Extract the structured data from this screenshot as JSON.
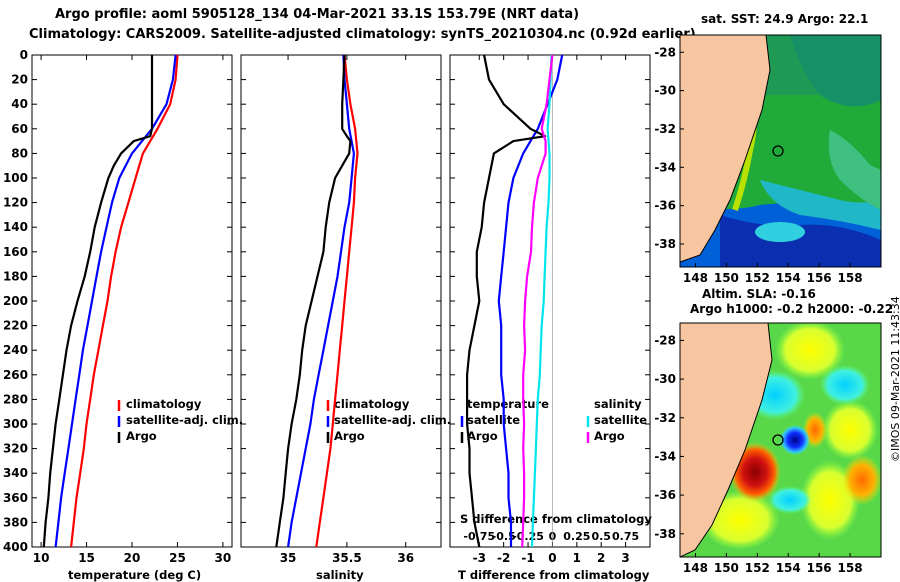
{
  "header": {
    "title_line1": "Argo profile: aoml 5905128_134 04-Mar-2021 33.1S 153.79E (NRT data)",
    "title_line2": "Climatology: CARS2009. Satellite-adjusted climatology: synTS_20210304.nc (0.92d earlier)"
  },
  "credit": "©IMOS 09-Mar-2021 11:43:34",
  "colors": {
    "climatology": "#ff0000",
    "satellite": "#0000ff",
    "argo": "#000000",
    "sat_salinity": "#00e5ee",
    "argo_salinity": "#ff00ff",
    "land": "#f7c59f"
  },
  "depth_ticks": [
    "0",
    "20",
    "40",
    "60",
    "80",
    "100",
    "120",
    "140",
    "160",
    "180",
    "200",
    "220",
    "240",
    "260",
    "280",
    "300",
    "320",
    "340",
    "360",
    "380",
    "400"
  ],
  "chart_data": [
    {
      "type": "line",
      "id": "temperature",
      "xlabel": "temperature (deg C)",
      "ylabel": "",
      "xlim": [
        9,
        31
      ],
      "ylim": [
        0,
        400
      ],
      "x_ticks": [
        "10",
        "15",
        "20",
        "25",
        "30"
      ],
      "legend": [
        "climatology",
        "satellite-adj. clim.",
        "Argo"
      ],
      "legend_position": "lower-right",
      "series": [
        {
          "name": "climatology",
          "color": "#ff0000",
          "depth": [
            0,
            20,
            40,
            60,
            80,
            100,
            120,
            140,
            160,
            180,
            200,
            220,
            240,
            260,
            280,
            300,
            320,
            340,
            360,
            380,
            400
          ],
          "values": [
            25.0,
            24.8,
            24.2,
            22.8,
            21.2,
            20.4,
            19.6,
            18.8,
            18.2,
            17.7,
            17.3,
            16.8,
            16.3,
            15.8,
            15.4,
            15.0,
            14.7,
            14.3,
            13.9,
            13.6,
            13.3
          ]
        },
        {
          "name": "satellite-adj. clim.",
          "color": "#0000ff",
          "depth": [
            0,
            20,
            40,
            60,
            80,
            100,
            120,
            140,
            160,
            180,
            200,
            220,
            240,
            260,
            280,
            300,
            320,
            340,
            360,
            380,
            400
          ],
          "values": [
            24.8,
            24.5,
            23.8,
            22.2,
            20.0,
            18.6,
            17.8,
            17.2,
            16.6,
            16.1,
            15.6,
            15.1,
            14.6,
            14.2,
            13.8,
            13.4,
            13.0,
            12.6,
            12.2,
            11.9,
            11.6
          ]
        },
        {
          "name": "Argo",
          "color": "#000000",
          "depth": [
            0,
            20,
            40,
            50,
            60,
            66,
            70,
            80,
            90,
            100,
            120,
            140,
            160,
            180,
            200,
            220,
            240,
            260,
            280,
            300,
            320,
            340,
            360,
            380,
            400
          ],
          "values": [
            22.2,
            22.2,
            22.2,
            22.2,
            22.2,
            22.0,
            20.2,
            18.8,
            18.0,
            17.4,
            16.6,
            15.9,
            15.4,
            14.8,
            14.0,
            13.3,
            12.8,
            12.4,
            12.0,
            11.6,
            11.3,
            11.0,
            10.8,
            10.5,
            10.3
          ]
        }
      ]
    },
    {
      "type": "line",
      "id": "salinity",
      "xlabel": "salinity",
      "ylabel": "",
      "xlim": [
        34.6,
        36.3
      ],
      "ylim": [
        0,
        400
      ],
      "x_ticks": [
        "35",
        "35.5",
        "36"
      ],
      "legend": [
        "climatology",
        "satellite-adj. clim.",
        "Argo"
      ],
      "legend_position": "lower-right",
      "series": [
        {
          "name": "climatology",
          "color": "#ff0000",
          "depth": [
            0,
            20,
            40,
            60,
            80,
            100,
            120,
            140,
            160,
            180,
            200,
            220,
            240,
            260,
            280,
            300,
            320,
            340,
            360,
            380,
            400
          ],
          "values": [
            35.48,
            35.5,
            35.53,
            35.57,
            35.59,
            35.57,
            35.56,
            35.54,
            35.52,
            35.5,
            35.48,
            35.46,
            35.44,
            35.42,
            35.4,
            35.38,
            35.36,
            35.33,
            35.3,
            35.27,
            35.24
          ]
        },
        {
          "name": "satellite-adj. clim.",
          "color": "#0000ff",
          "depth": [
            0,
            20,
            40,
            60,
            80,
            100,
            120,
            140,
            160,
            180,
            200,
            220,
            240,
            260,
            280,
            300,
            320,
            340,
            360,
            380,
            400
          ],
          "values": [
            35.47,
            35.48,
            35.5,
            35.52,
            35.56,
            35.54,
            35.52,
            35.48,
            35.45,
            35.42,
            35.38,
            35.34,
            35.3,
            35.26,
            35.22,
            35.19,
            35.15,
            35.11,
            35.07,
            35.03,
            35.0
          ]
        },
        {
          "name": "Argo",
          "color": "#000000",
          "depth": [
            0,
            20,
            40,
            60,
            66,
            70,
            80,
            100,
            120,
            140,
            160,
            180,
            200,
            220,
            240,
            260,
            280,
            300,
            320,
            340,
            360,
            380,
            400
          ],
          "values": [
            35.48,
            35.47,
            35.46,
            35.46,
            35.5,
            35.53,
            35.52,
            35.4,
            35.35,
            35.32,
            35.3,
            35.25,
            35.2,
            35.15,
            35.12,
            35.1,
            35.07,
            35.03,
            35.0,
            34.98,
            34.96,
            34.93,
            34.9
          ]
        }
      ]
    },
    {
      "type": "line",
      "id": "difference",
      "xlabel": "T difference from climatology",
      "secondary_xlabel": "S difference from climatology",
      "xlim": [
        -4.2,
        4.0
      ],
      "ylim": [
        0,
        400
      ],
      "x_ticks": [
        "-3",
        "-2",
        "-1",
        "0",
        "1",
        "2",
        "3"
      ],
      "secondary_x_ticks": [
        "-0.75",
        "-0.5",
        "-0.25",
        "0",
        "0.25",
        "0.5",
        "0.75"
      ],
      "legend_temperature_title": "temperature",
      "legend_salinity_title": "salinity",
      "legend_temperature": [
        "satellite",
        "Argo"
      ],
      "legend_salinity": [
        "satellite",
        "Argo"
      ],
      "series": [
        {
          "name": "temperature satellite",
          "color": "#0000ff",
          "depth": [
            0,
            20,
            40,
            60,
            80,
            100,
            120,
            140,
            160,
            180,
            200,
            220,
            240,
            260,
            280,
            300,
            320,
            340,
            360,
            380,
            400
          ],
          "values": [
            0.4,
            0.2,
            -0.2,
            -0.6,
            -1.2,
            -1.6,
            -1.8,
            -1.9,
            -2.0,
            -2.1,
            -2.2,
            -2.1,
            -2.1,
            -2.1,
            -2.0,
            -2.0,
            -1.9,
            -1.8,
            -1.8,
            -1.7,
            -1.7
          ]
        },
        {
          "name": "temperature Argo",
          "color": "#000000",
          "depth": [
            0,
            20,
            40,
            60,
            66,
            70,
            80,
            100,
            120,
            140,
            160,
            180,
            200,
            220,
            240,
            260,
            280,
            300,
            320,
            340,
            360,
            380,
            400
          ],
          "values": [
            -2.8,
            -2.6,
            -2.0,
            -0.9,
            -0.3,
            -1.6,
            -2.4,
            -2.6,
            -2.8,
            -2.9,
            -3.1,
            -3.1,
            -3.0,
            -3.2,
            -3.4,
            -3.5,
            -3.5,
            -3.5,
            -3.4,
            -3.4,
            -3.3,
            -3.2,
            -3.0
          ]
        },
        {
          "name": "salinity satellite",
          "color": "#00e5ee",
          "depth": [
            0,
            20,
            40,
            60,
            80,
            100,
            120,
            140,
            160,
            180,
            200,
            220,
            240,
            260,
            280,
            300,
            320,
            340,
            360,
            380,
            400
          ],
          "values": [
            -0.01,
            -0.02,
            -0.03,
            -0.05,
            -0.03,
            -0.03,
            -0.04,
            -0.06,
            -0.07,
            -0.08,
            -0.09,
            -0.11,
            -0.12,
            -0.13,
            -0.15,
            -0.16,
            -0.17,
            -0.18,
            -0.19,
            -0.2,
            -0.21
          ]
        },
        {
          "name": "salinity Argo",
          "color": "#ff00ff",
          "depth": [
            0,
            20,
            40,
            60,
            70,
            80,
            100,
            120,
            140,
            160,
            180,
            200,
            220,
            240,
            260,
            280,
            300,
            320,
            340,
            360,
            380,
            400
          ],
          "values": [
            0.0,
            -0.03,
            -0.06,
            -0.11,
            -0.07,
            -0.07,
            -0.15,
            -0.19,
            -0.21,
            -0.22,
            -0.26,
            -0.28,
            -0.29,
            -0.28,
            -0.3,
            -0.3,
            -0.29,
            -0.3,
            -0.29,
            -0.29,
            -0.3,
            -0.31
          ]
        }
      ]
    },
    {
      "type": "heatmap",
      "id": "sst_map",
      "title": "sat. SST: 24.9 Argo: 22.1",
      "x_ticks": [
        "148",
        "150",
        "152",
        "154",
        "156",
        "158"
      ],
      "y_ticks": [
        "-28",
        "-30",
        "-32",
        "-34",
        "-36",
        "-38"
      ],
      "xlim": [
        147,
        160
      ],
      "ylim": [
        -39.2,
        -27.1
      ],
      "argo_position": [
        153.79,
        -33.1
      ]
    },
    {
      "type": "heatmap",
      "id": "sla_map",
      "title": "Altim. SLA: -0.16",
      "subtitle": "Argo h1000: -0.2 h2000: -0.22",
      "x_ticks": [
        "148",
        "150",
        "152",
        "154",
        "156",
        "158"
      ],
      "y_ticks": [
        "-28",
        "-30",
        "-32",
        "-34",
        "-36",
        "-38"
      ],
      "xlim": [
        147,
        160
      ],
      "ylim": [
        -39.2,
        -27.1
      ],
      "argo_position": [
        153.79,
        -33.1
      ]
    }
  ]
}
